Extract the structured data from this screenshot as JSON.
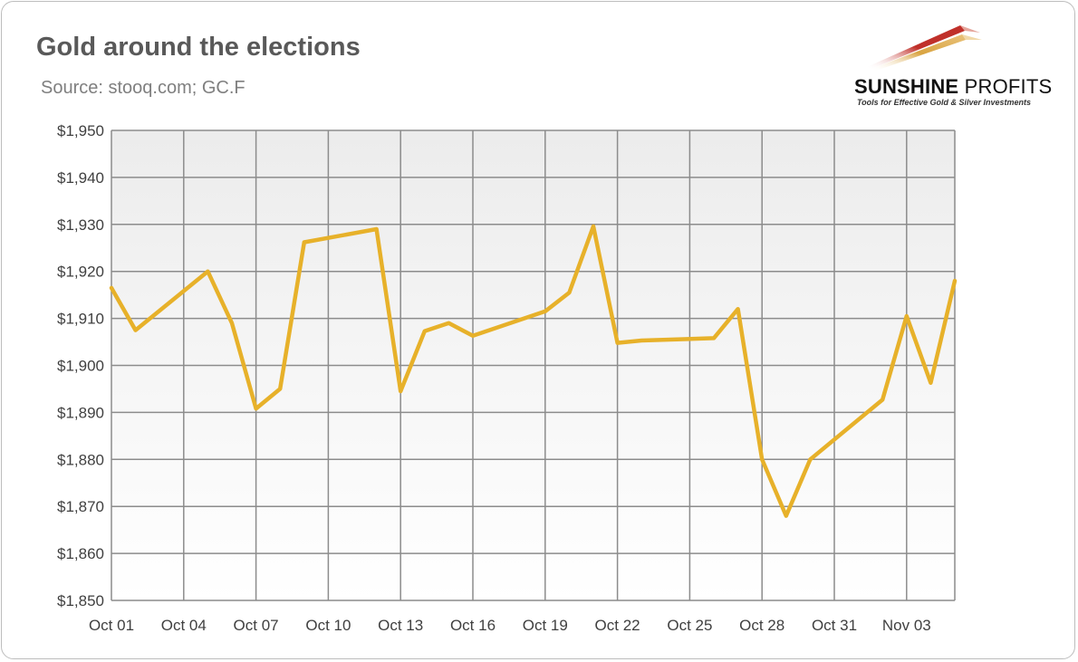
{
  "header": {
    "title": "Gold around the elections",
    "subtitle": "Source: stooq.com; GC.F"
  },
  "logo": {
    "word1": "SUNSHINE",
    "word2": "PROFITS",
    "tagline": "Tools for Effective Gold & Silver Investments"
  },
  "colors": {
    "line": "#E7B12A",
    "grid": "#8c8c8c",
    "plot_bg_top": "#ececec",
    "plot_bg_bottom": "#ffffff",
    "logo_red": "#c0302a",
    "logo_gold": "#d9a441"
  },
  "chart_data": {
    "type": "line",
    "title": "Gold around the elections",
    "subtitle": "Source: stooq.com; GC.F",
    "xlabel": "",
    "ylabel": "",
    "ylim": [
      1850,
      1950
    ],
    "yticks": [
      1850,
      1860,
      1870,
      1880,
      1890,
      1900,
      1910,
      1920,
      1930,
      1940,
      1950
    ],
    "ytick_labels": [
      "$1,850",
      "$1,860",
      "$1,870",
      "$1,880",
      "$1,890",
      "$1,900",
      "$1,910",
      "$1,920",
      "$1,930",
      "$1,940",
      "$1,950"
    ],
    "xlim": [
      "Oct 01",
      "Nov 05"
    ],
    "xtick_labels": [
      "Oct 01",
      "Oct 04",
      "Oct 07",
      "Oct 10",
      "Oct 13",
      "Oct 16",
      "Oct 19",
      "Oct 22",
      "Oct 25",
      "Oct 28",
      "Oct 31",
      "Nov 03"
    ],
    "grid": true,
    "legend": "none",
    "series": [
      {
        "x": [
          "Oct 01",
          "Oct 02",
          "Oct 05",
          "Oct 06",
          "Oct 07",
          "Oct 08",
          "Oct 09",
          "Oct 12",
          "Oct 13",
          "Oct 14",
          "Oct 15",
          "Oct 16",
          "Oct 19",
          "Oct 20",
          "Oct 21",
          "Oct 22",
          "Oct 23",
          "Oct 26",
          "Oct 27",
          "Oct 28",
          "Oct 29",
          "Oct 30",
          "Nov 02",
          "Nov 03",
          "Nov 04",
          "Nov 05"
        ],
        "values": [
          1916.5,
          1907.5,
          1920.0,
          1909.0,
          1890.8,
          1895.0,
          1926.2,
          1929.0,
          1894.5,
          1907.3,
          1909.0,
          1906.3,
          1911.5,
          1915.5,
          1929.6,
          1904.8,
          1905.3,
          1905.8,
          1912.0,
          1880.0,
          1868.0,
          1880.0,
          1892.7,
          1910.5,
          1896.3,
          1918.0
        ]
      }
    ]
  }
}
